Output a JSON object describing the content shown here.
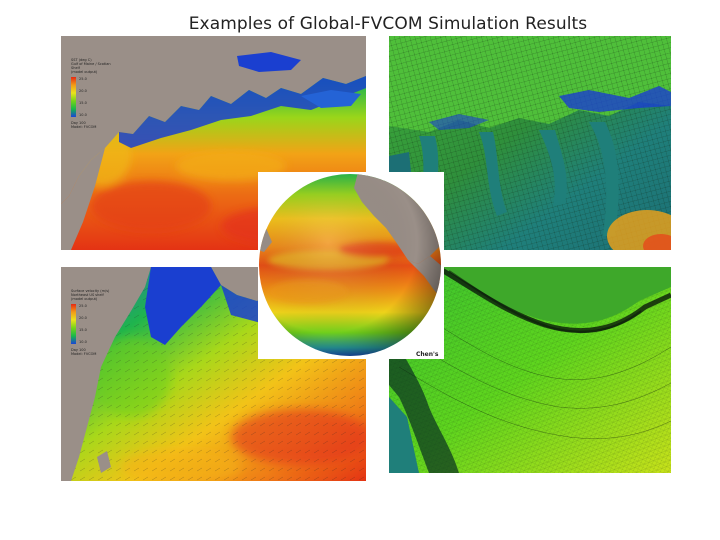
{
  "slide": {
    "title": "Examples of Global-FVCOM Simulation Results",
    "credit": "Chen's"
  },
  "panels": [
    {
      "id": "gulf-stream-sst",
      "legend": {
        "header": [
          "SST (deg C)",
          "Gulf of Maine / Scotian Shelf",
          "(model output)"
        ],
        "ticks": [
          "25.0",
          "20.0",
          "15.0",
          "10.0"
        ],
        "footer": [
          "Day 100",
          "Model: FVCOM"
        ]
      }
    },
    {
      "id": "coastal-mesh-zoom"
    },
    {
      "id": "shelf-currents",
      "legend": {
        "header": [
          "Surface velocity (m/s)",
          "Northeast US shelf",
          "(model output)"
        ],
        "ticks": [
          "25.0",
          "20.0",
          "15.0",
          "10.0"
        ],
        "footer": [
          "Day 100",
          "Model: FVCOM"
        ]
      }
    },
    {
      "id": "nested-mesh"
    }
  ],
  "colors": {
    "land": "#9a8f88",
    "cold": "#1a3fd0",
    "cool": "#1fb44d",
    "mild": "#7fd31a",
    "warm": "#f2a316",
    "hot": "#e63b17",
    "mesh": "#0f2410",
    "teal": "#1f7f7a"
  },
  "icons": {
    "globe": "global-ocean-sst-globe"
  }
}
